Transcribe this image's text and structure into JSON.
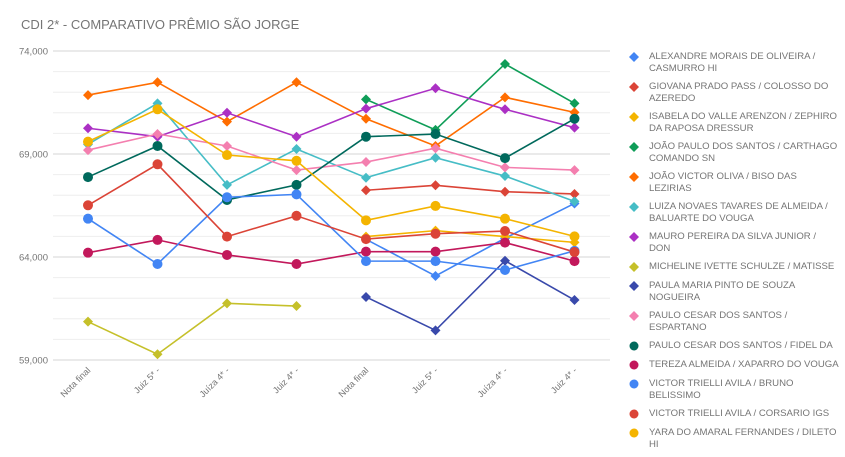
{
  "chart_data": {
    "type": "line",
    "title": "CDI 2*  - COMPARATIVO PRÊMIO SÃO JORGE",
    "xlabel": "",
    "ylabel": "",
    "categories": [
      "Nota final",
      "Juiz 5* -",
      "Juíza 4* -",
      "Juiz 4* -",
      "Nota final",
      "Juiz 5* -",
      "Juíza 4* -",
      "Juiz 4* -"
    ],
    "ylim": [
      59,
      74
    ],
    "yticks": [
      59,
      64,
      69,
      74
    ],
    "ytick_labels": [
      "59,000",
      "64,000",
      "69,000",
      "74,000"
    ],
    "minor_grid_step": 1,
    "grid": true,
    "legend_position": "right",
    "series": [
      {
        "name": "ALEXANDRE MORAIS DE OLIVEIRA / CASMURRO HI",
        "color": "#4285F4",
        "marker": "diamond",
        "values": [
          null,
          null,
          null,
          null,
          64.86,
          63.08,
          64.91,
          66.6
        ]
      },
      {
        "name": "GIOVANA PRADO PASS / COLOSSO DO AZEREDO",
        "color": "#DB4437",
        "marker": "diamond",
        "values": [
          null,
          null,
          null,
          null,
          67.24,
          67.48,
          67.17,
          67.06
        ]
      },
      {
        "name": "ISABELA DO VALLE ARENZON / ZEPHIRO DA RAPOSA DRESSUR",
        "color": "#F4B400",
        "marker": "diamond",
        "values": [
          null,
          null,
          null,
          null,
          64.99,
          65.28,
          64.99,
          64.71
        ]
      },
      {
        "name": "JOÃO PAULO DOS SANTOS / CARTHAGO COMANDO SN",
        "color": "#0F9D58",
        "marker": "diamond",
        "values": [
          null,
          null,
          null,
          null,
          71.65,
          70.17,
          73.37,
          71.46
        ]
      },
      {
        "name": "JOÃO VICTOR OLIVA / BISO DAS LEZIRIAS",
        "color": "#FF6D00",
        "marker": "diamond",
        "values": [
          71.86,
          72.48,
          70.57,
          72.48,
          70.71,
          69.39,
          71.75,
          71.02
        ]
      },
      {
        "name": "LUIZA NOVAES TAVARES DE ALMEIDA / BALUARTE DO VOUGA",
        "color": "#46BDC6",
        "marker": "diamond",
        "values": [
          69.47,
          71.46,
          67.5,
          69.24,
          67.85,
          68.82,
          67.93,
          66.7
        ]
      },
      {
        "name": "MAURO PEREIRA DA SILVA JUNIOR / DON",
        "color": "#AB30C4",
        "marker": "diamond",
        "values": [
          70.25,
          69.84,
          71.0,
          69.84,
          71.2,
          72.19,
          71.17,
          70.28
        ]
      },
      {
        "name": "MICHELINE IVETTE SCHULZE / MATISSE",
        "color": "#C5C02A",
        "marker": "diamond",
        "values": [
          60.86,
          59.28,
          61.75,
          61.62,
          null,
          null,
          null,
          null
        ]
      },
      {
        "name": "PAULA MARIA PINTO DE SOUZA NOGUEIRA",
        "color": "#3949AB",
        "marker": "diamond",
        "values": [
          null,
          null,
          null,
          null,
          62.06,
          60.44,
          63.82,
          61.91
        ]
      },
      {
        "name": "PAULO CESAR DOS SANTOS / ESPARTANO",
        "color": "#F47FAF",
        "marker": "diamond",
        "values": [
          69.19,
          69.97,
          69.39,
          68.22,
          68.61,
          69.28,
          68.35,
          68.22
        ]
      },
      {
        "name": "PAULO CESAR DOS SANTOS / FIDEL DA",
        "color": "#00695C",
        "marker": "circle",
        "values": [
          67.88,
          69.39,
          66.77,
          67.5,
          69.84,
          69.97,
          68.8,
          70.71
        ]
      },
      {
        "name": "TEREZA ALMEIDA / XAPARRO DO VOUGA",
        "color": "#C2185B",
        "marker": "circle",
        "values": [
          64.21,
          64.83,
          64.1,
          63.66,
          64.26,
          64.26,
          64.7,
          63.8
        ]
      },
      {
        "name": "VICTOR TRIELLI AVILA / BRUNO BELISSIMO",
        "color": "#4285F4",
        "marker": "circle",
        "values": [
          65.86,
          63.66,
          66.9,
          67.04,
          63.8,
          63.8,
          63.37,
          64.3
        ]
      },
      {
        "name": "VICTOR TRIELLI AVILA / CORSARIO IGS",
        "color": "#DB4437",
        "marker": "circle",
        "values": [
          66.51,
          68.5,
          64.99,
          66.0,
          64.87,
          65.13,
          65.26,
          64.24
        ]
      },
      {
        "name": "YARA DO AMARAL FERNANDES / DILETO HI",
        "color": "#F4B400",
        "marker": "circle",
        "values": [
          69.6,
          71.17,
          68.95,
          68.67,
          65.78,
          66.48,
          65.86,
          65.0
        ]
      }
    ]
  }
}
